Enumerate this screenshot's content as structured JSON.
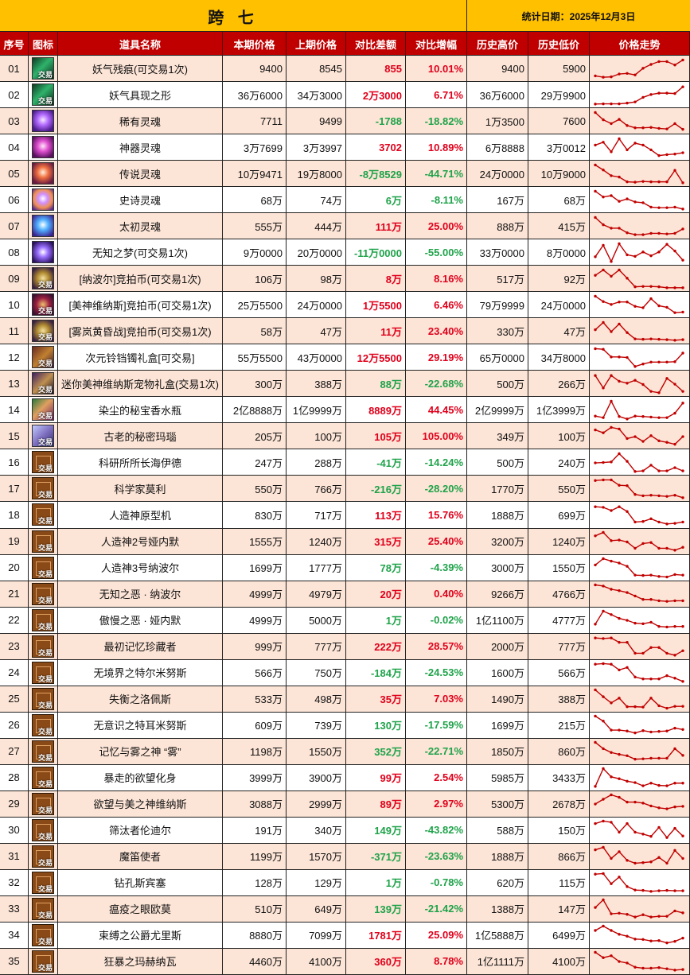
{
  "title": "跨 七",
  "stat_date": "统计日期：2025年12月3日",
  "columns": [
    "序号",
    "图标",
    "道具名称",
    "本期价格",
    "上期价格",
    "对比差额",
    "对比增幅",
    "历史高价",
    "历史低价",
    "价格走势"
  ],
  "trade_badge": "交易",
  "colors": {
    "title_bg": "#ffc000",
    "header_bg": "#c00000",
    "row_alt_bg": "#fce4d6",
    "up": "#e0001b",
    "down": "#1fa34a",
    "sparkline": "#c00000"
  },
  "rows": [
    {
      "no": "01",
      "icon": "ic-green",
      "trade": true,
      "name": "妖气残痕(可交易1次)",
      "cur": "9400",
      "prev": "8545",
      "diff": "855",
      "pct": "10.01%",
      "diff_dir": "up",
      "pct_dir": "up",
      "high": "9400",
      "low": "5900",
      "trend": [
        15,
        8,
        10,
        25,
        28,
        20,
        55,
        75,
        90,
        90,
        72,
        98
      ]
    },
    {
      "no": "02",
      "icon": "ic-green",
      "trade": true,
      "name": "妖气具现之形",
      "cur": "36万6000",
      "prev": "34万3000",
      "diff": "2万3000",
      "pct": "6.71%",
      "diff_dir": "up",
      "pct_dir": "up",
      "high": "36万6000",
      "low": "29万9900",
      "trend": [
        5,
        6,
        6,
        6,
        10,
        16,
        40,
        55,
        62,
        62,
        60,
        95
      ]
    },
    {
      "no": "03",
      "icon": "ic-soul-purple",
      "trade": false,
      "name": "稀有灵魂",
      "cur": "7711",
      "prev": "9499",
      "diff": "-1788",
      "pct": "-18.82%",
      "diff_dir": "down",
      "pct_dir": "down",
      "high": "1万3500",
      "low": "7600",
      "trend": [
        98,
        60,
        40,
        62,
        30,
        18,
        18,
        20,
        15,
        12,
        40,
        10
      ]
    },
    {
      "no": "04",
      "icon": "ic-soul-magenta",
      "trade": false,
      "name": "神器灵魂",
      "cur": "3万7699",
      "prev": "3万3997",
      "diff": "3702",
      "pct": "10.89%",
      "diff_dir": "up",
      "pct_dir": "up",
      "high": "6万8888",
      "low": "3万0012",
      "trend": [
        65,
        80,
        30,
        98,
        40,
        75,
        65,
        40,
        10,
        15,
        18,
        25
      ]
    },
    {
      "no": "05",
      "icon": "ic-soul-orange",
      "trade": false,
      "name": "传说灵魂",
      "cur": "10万9471",
      "prev": "19万8000",
      "diff": "-8万8529",
      "pct": "-44.71%",
      "diff_dir": "down",
      "pct_dir": "down",
      "high": "24万0000",
      "low": "10万9000",
      "trend": [
        98,
        72,
        42,
        35,
        10,
        8,
        12,
        10,
        10,
        10,
        70,
        5
      ]
    },
    {
      "no": "06",
      "icon": "ic-soul-multi",
      "trade": false,
      "name": "史诗灵魂",
      "cur": "68万",
      "prev": "74万",
      "diff": "6万",
      "pct": "-8.11%",
      "diff_dir": "down",
      "pct_dir": "down",
      "high": "167万",
      "low": "68万",
      "trend": [
        98,
        68,
        75,
        45,
        58,
        42,
        38,
        15,
        12,
        12,
        15,
        5
      ]
    },
    {
      "no": "07",
      "icon": "ic-soul-blue",
      "trade": false,
      "name": "太初灵魂",
      "cur": "555万",
      "prev": "444万",
      "diff": "111万",
      "pct": "25.00%",
      "diff_dir": "up",
      "pct_dir": "up",
      "high": "888万",
      "low": "415万",
      "trend": [
        98,
        60,
        42,
        42,
        18,
        8,
        8,
        15,
        15,
        12,
        15,
        38
      ]
    },
    {
      "no": "08",
      "icon": "ic-dream",
      "trade": false,
      "name": "无知之梦(可交易1次)",
      "cur": "9万0000",
      "prev": "20万0000",
      "diff": "-11万0000",
      "pct": "-55.00%",
      "diff_dir": "down",
      "pct_dir": "down",
      "high": "33万0000",
      "low": "8万0000",
      "trend": [
        30,
        90,
        5,
        98,
        40,
        32,
        55,
        35,
        55,
        95,
        60,
        12
      ]
    },
    {
      "no": "09",
      "icon": "ic-coin-gold",
      "trade": true,
      "name": "[纳波尔]竞拍币(可交易1次)",
      "cur": "106万",
      "prev": "98万",
      "diff": "8万",
      "pct": "8.16%",
      "diff_dir": "up",
      "pct_dir": "up",
      "high": "517万",
      "low": "92万",
      "trend": [
        70,
        98,
        65,
        98,
        55,
        10,
        12,
        12,
        10,
        5,
        5,
        5
      ]
    },
    {
      "no": "10",
      "icon": "ic-coin-red",
      "trade": true,
      "name": "[美神维纳斯]竞拍币(可交易1次)",
      "cur": "25万5500",
      "prev": "24万0000",
      "diff": "1万5500",
      "pct": "6.46%",
      "diff_dir": "up",
      "pct_dir": "up",
      "high": "79万9999",
      "low": "24万0000",
      "trend": [
        98,
        70,
        55,
        68,
        68,
        45,
        38,
        85,
        48,
        40,
        12,
        15
      ]
    },
    {
      "no": "11",
      "icon": "ic-coin-gold",
      "trade": true,
      "name": "[雾岚黄昏战]竞拍币(可交易1次)",
      "cur": "58万",
      "prev": "47万",
      "diff": "11万",
      "pct": "23.40%",
      "diff_dir": "up",
      "pct_dir": "up",
      "high": "330万",
      "low": "47万",
      "trend": [
        60,
        98,
        50,
        90,
        45,
        12,
        10,
        12,
        10,
        8,
        5,
        8
      ]
    },
    {
      "no": "12",
      "icon": "ic-box",
      "trade": true,
      "name": "次元铃铛镯礼盒[可交易]",
      "cur": "55万5500",
      "prev": "43万0000",
      "diff": "12万5500",
      "pct": "29.19%",
      "diff_dir": "up",
      "pct_dir": "up",
      "high": "65万0000",
      "low": "34万8000",
      "trend": [
        98,
        95,
        55,
        55,
        52,
        5,
        18,
        28,
        28,
        28,
        30,
        75
      ]
    },
    {
      "no": "13",
      "icon": "ic-pet",
      "trade": true,
      "name": "迷你美神维纳斯宠物礼盒(交易1次)",
      "cur": "300万",
      "prev": "388万",
      "diff": "88万",
      "pct": "-22.68%",
      "diff_dir": "down",
      "pct_dir": "down",
      "high": "500万",
      "low": "266万",
      "trend": [
        95,
        30,
        95,
        65,
        55,
        70,
        48,
        12,
        5,
        80,
        50,
        12
      ]
    },
    {
      "no": "14",
      "icon": "ic-perfume",
      "trade": true,
      "name": "染尘的秘宝香水瓶",
      "cur": "2亿8888万",
      "prev": "1亿9999万",
      "diff": "8889万",
      "pct": "44.45%",
      "diff_dir": "up",
      "pct_dir": "up",
      "high": "2亿9999万",
      "low": "1亿3999万",
      "trend": [
        20,
        12,
        98,
        18,
        5,
        20,
        18,
        15,
        12,
        12,
        35,
        88
      ]
    },
    {
      "no": "15",
      "icon": "ic-agate",
      "trade": true,
      "name": "古老的秘密玛瑙",
      "cur": "205万",
      "prev": "100万",
      "diff": "105万",
      "pct": "105.00%",
      "diff_dir": "up",
      "pct_dir": "up",
      "high": "349万",
      "low": "100万",
      "trend": [
        85,
        70,
        98,
        90,
        40,
        50,
        25,
        55,
        28,
        20,
        10,
        50
      ]
    },
    {
      "no": "16",
      "icon": "ic-card",
      "trade": true,
      "name": "科研所所长海伊德",
      "cur": "247万",
      "prev": "288万",
      "diff": "-41万",
      "pct": "-14.24%",
      "diff_dir": "down",
      "pct_dir": "down",
      "high": "500万",
      "low": "240万",
      "trend": [
        50,
        52,
        55,
        98,
        58,
        5,
        8,
        38,
        8,
        8,
        25,
        8
      ]
    },
    {
      "no": "17",
      "icon": "ic-card",
      "trade": true,
      "name": "科学家莫利",
      "cur": "550万",
      "prev": "766万",
      "diff": "-216万",
      "pct": "-28.20%",
      "diff_dir": "down",
      "pct_dir": "down",
      "high": "1770万",
      "low": "550万",
      "trend": [
        95,
        98,
        98,
        70,
        68,
        22,
        15,
        18,
        15,
        12,
        18,
        5
      ]
    },
    {
      "no": "18",
      "icon": "ic-card",
      "trade": true,
      "name": "人造神原型机",
      "cur": "830万",
      "prev": "717万",
      "diff": "113万",
      "pct": "15.76%",
      "diff_dir": "up",
      "pct_dir": "up",
      "high": "1888万",
      "low": "699万",
      "trend": [
        95,
        92,
        75,
        95,
        70,
        15,
        18,
        32,
        15,
        5,
        8,
        15
      ]
    },
    {
      "no": "19",
      "icon": "ic-card",
      "trade": true,
      "name": "人造神2号娅内默",
      "cur": "1555万",
      "prev": "1240万",
      "diff": "315万",
      "pct": "25.40%",
      "diff_dir": "up",
      "pct_dir": "up",
      "high": "3200万",
      "low": "1240万",
      "trend": [
        80,
        98,
        55,
        58,
        48,
        15,
        40,
        45,
        15,
        15,
        5,
        20
      ]
    },
    {
      "no": "20",
      "icon": "ic-card",
      "trade": true,
      "name": "人造神3号纳波尔",
      "cur": "1699万",
      "prev": "1777万",
      "diff": "78万",
      "pct": "-4.39%",
      "diff_dir": "down",
      "pct_dir": "down",
      "high": "3000万",
      "low": "1550万",
      "trend": [
        65,
        98,
        85,
        75,
        58,
        12,
        10,
        12,
        5,
        2,
        15,
        12
      ]
    },
    {
      "no": "21",
      "icon": "ic-card",
      "trade": true,
      "name": "无知之恶 · 纳波尔",
      "cur": "4999万",
      "prev": "4979万",
      "diff": "20万",
      "pct": "0.40%",
      "diff_dir": "up",
      "pct_dir": "up",
      "high": "9266万",
      "low": "4766万",
      "trend": [
        98,
        92,
        75,
        68,
        58,
        40,
        22,
        22,
        15,
        12,
        15,
        15
      ]
    },
    {
      "no": "22",
      "icon": "ic-card",
      "trade": true,
      "name": "傲慢之恶 · 娅内默",
      "cur": "4999万",
      "prev": "5000万",
      "diff": "1万",
      "pct": "-0.02%",
      "diff_dir": "down",
      "pct_dir": "down",
      "high": "1亿1100万",
      "low": "4777万",
      "trend": [
        30,
        98,
        80,
        60,
        50,
        35,
        32,
        40,
        18,
        15,
        18,
        18
      ]
    },
    {
      "no": "23",
      "icon": "ic-card",
      "trade": true,
      "name": "最初记忆珍藏者",
      "cur": "999万",
      "prev": "777万",
      "diff": "222万",
      "pct": "28.57%",
      "diff_dir": "up",
      "pct_dir": "up",
      "high": "2000万",
      "low": "777万",
      "trend": [
        95,
        92,
        95,
        72,
        72,
        15,
        15,
        45,
        45,
        15,
        5,
        28
      ]
    },
    {
      "no": "24",
      "icon": "ic-card",
      "trade": true,
      "name": "无境界之特尔米努斯",
      "cur": "566万",
      "prev": "750万",
      "diff": "-184万",
      "pct": "-24.53%",
      "diff_dir": "down",
      "pct_dir": "down",
      "high": "1600万",
      "low": "566万",
      "trend": [
        95,
        98,
        95,
        65,
        78,
        28,
        18,
        18,
        18,
        35,
        22,
        5
      ]
    },
    {
      "no": "25",
      "icon": "ic-card",
      "trade": true,
      "name": "失衡之洛佩斯",
      "cur": "533万",
      "prev": "498万",
      "diff": "35万",
      "pct": "7.03%",
      "diff_dir": "up",
      "pct_dir": "up",
      "high": "1490万",
      "low": "388万",
      "trend": [
        98,
        62,
        30,
        55,
        10,
        10,
        8,
        55,
        15,
        2,
        12,
        12
      ]
    },
    {
      "no": "26",
      "icon": "ic-card",
      "trade": true,
      "name": "无意识之特耳米努斯",
      "cur": "609万",
      "prev": "739万",
      "diff": "130万",
      "pct": "-17.59%",
      "diff_dir": "down",
      "pct_dir": "down",
      "high": "1699万",
      "low": "215万",
      "trend": [
        98,
        72,
        25,
        25,
        20,
        10,
        22,
        15,
        18,
        20,
        35,
        28
      ]
    },
    {
      "no": "27",
      "icon": "ic-card",
      "trade": true,
      "name": "记忆与雾之神 “雾”",
      "cur": "1198万",
      "prev": "1550万",
      "diff": "352万",
      "pct": "-22.71%",
      "diff_dir": "down",
      "pct_dir": "down",
      "high": "1850万",
      "low": "860万",
      "trend": [
        98,
        65,
        45,
        35,
        28,
        10,
        12,
        15,
        15,
        15,
        65,
        30
      ]
    },
    {
      "no": "28",
      "icon": "ic-card",
      "trade": true,
      "name": "暴走的欲望化身",
      "cur": "3999万",
      "prev": "3900万",
      "diff": "99万",
      "pct": "2.54%",
      "diff_dir": "up",
      "pct_dir": "up",
      "high": "5985万",
      "low": "3433万",
      "trend": [
        5,
        98,
        55,
        45,
        32,
        25,
        8,
        22,
        10,
        8,
        22,
        22
      ]
    },
    {
      "no": "29",
      "icon": "ic-card",
      "trade": true,
      "name": "欲望与美之神维纳斯",
      "cur": "3088万",
      "prev": "2999万",
      "diff": "89万",
      "pct": "2.97%",
      "diff_dir": "up",
      "pct_dir": "up",
      "high": "5300万",
      "low": "2678万",
      "trend": [
        50,
        75,
        98,
        85,
        60,
        60,
        55,
        40,
        30,
        25,
        35,
        38
      ]
    },
    {
      "no": "30",
      "icon": "ic-card",
      "trade": true,
      "name": "筛汰者伦迪尔",
      "cur": "191万",
      "prev": "340万",
      "diff": "149万",
      "pct": "-43.82%",
      "diff_dir": "down",
      "pct_dir": "down",
      "high": "588万",
      "low": "150万",
      "trend": [
        85,
        98,
        92,
        40,
        85,
        40,
        30,
        18,
        65,
        12,
        60,
        20
      ]
    },
    {
      "no": "31",
      "icon": "ic-card",
      "trade": true,
      "name": "魔笛使者",
      "cur": "1199万",
      "prev": "1570万",
      "diff": "-371万",
      "pct": "-23.63%",
      "diff_dir": "down",
      "pct_dir": "down",
      "high": "1888万",
      "low": "866万",
      "trend": [
        85,
        98,
        40,
        75,
        30,
        15,
        18,
        22,
        45,
        15,
        82,
        40
      ]
    },
    {
      "no": "32",
      "icon": "ic-card",
      "trade": true,
      "name": "钻孔斯宾塞",
      "cur": "128万",
      "prev": "129万",
      "diff": "1万",
      "pct": "-0.78%",
      "diff_dir": "down",
      "pct_dir": "down",
      "high": "620万",
      "low": "115万",
      "trend": [
        95,
        98,
        45,
        80,
        30,
        12,
        10,
        5,
        8,
        10,
        8,
        8
      ]
    },
    {
      "no": "33",
      "icon": "ic-card",
      "trade": true,
      "name": "瘟疫之眼欧莫",
      "cur": "510万",
      "prev": "649万",
      "diff": "139万",
      "pct": "-21.42%",
      "diff_dir": "down",
      "pct_dir": "down",
      "high": "1388万",
      "low": "147万",
      "trend": [
        58,
        98,
        25,
        28,
        22,
        8,
        20,
        8,
        12,
        12,
        40,
        30
      ]
    },
    {
      "no": "34",
      "icon": "ic-card",
      "trade": true,
      "name": "束缚之公爵尤里斯",
      "cur": "8880万",
      "prev": "7099万",
      "diff": "1781万",
      "pct": "25.09%",
      "diff_dir": "up",
      "pct_dir": "up",
      "high": "1亿5888万",
      "low": "6499万",
      "trend": [
        75,
        98,
        75,
        55,
        45,
        30,
        28,
        20,
        22,
        10,
        18,
        35
      ]
    },
    {
      "no": "35",
      "icon": "ic-card",
      "trade": true,
      "name": "狂暴之玛赫纳瓦",
      "cur": "4460万",
      "prev": "4100万",
      "diff": "360万",
      "pct": "8.78%",
      "diff_dir": "up",
      "pct_dir": "up",
      "high": "1亿1111万",
      "low": "4100万",
      "trend": [
        98,
        70,
        80,
        50,
        42,
        20,
        15,
        15,
        18,
        12,
        5,
        8
      ]
    }
  ]
}
